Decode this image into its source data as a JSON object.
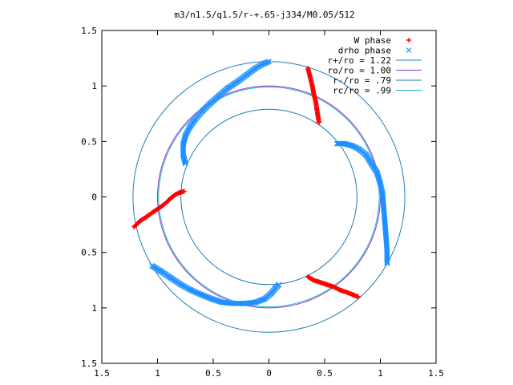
{
  "chart_data": {
    "type": "scatter",
    "title": "m3/n1.5/q1.5/r-+.65-j334/M0.05/512",
    "xlim": [
      -1.5,
      1.5
    ],
    "ylim": [
      -1.5,
      1.5
    ],
    "xticks": [
      -1.5,
      -1,
      -0.5,
      0,
      0.5,
      1,
      1.5
    ],
    "yticks": [
      -1.5,
      -1,
      -0.5,
      0,
      0.5,
      1,
      1.5
    ],
    "xtick_labels": [
      "1.5",
      "1",
      "0.5",
      "0",
      "0.5",
      "1",
      "1.5"
    ],
    "ytick_labels": [
      "1.5",
      "1",
      "0.5",
      "0",
      "0.5",
      "1",
      "1.5"
    ],
    "grid": false,
    "legend_position": "top-right",
    "series": [
      {
        "name": "W phase",
        "kind": "points",
        "marker": "plus",
        "color": "#ff0000",
        "segments": [
          [
            [
              -1.21,
              -0.27
            ],
            [
              -1.16,
              -0.22
            ],
            [
              -1.1,
              -0.18
            ],
            [
              -1.03,
              -0.13
            ],
            [
              -0.97,
              -0.09
            ],
            [
              -0.92,
              -0.05
            ],
            [
              -0.88,
              -0.01
            ],
            [
              -0.84,
              0.02
            ],
            [
              -0.8,
              0.04
            ],
            [
              -0.76,
              0.05
            ]
          ],
          [
            [
              0.35,
              1.16
            ],
            [
              0.37,
              1.08
            ],
            [
              0.39,
              1.0
            ],
            [
              0.4,
              0.94
            ],
            [
              0.42,
              0.86
            ],
            [
              0.43,
              0.79
            ],
            [
              0.44,
              0.73
            ],
            [
              0.45,
              0.67
            ]
          ],
          [
            [
              0.35,
              -0.72
            ],
            [
              0.4,
              -0.75
            ],
            [
              0.46,
              -0.77
            ],
            [
              0.52,
              -0.79
            ],
            [
              0.58,
              -0.81
            ],
            [
              0.64,
              -0.84
            ],
            [
              0.7,
              -0.86
            ],
            [
              0.75,
              -0.88
            ],
            [
              0.8,
              -0.9
            ]
          ]
        ]
      },
      {
        "name": "drho phase",
        "kind": "points",
        "marker": "cross",
        "color": "#1e90ff",
        "segments": [
          [
            [
              -0.75,
              0.3
            ],
            [
              -0.77,
              0.38
            ],
            [
              -0.77,
              0.47
            ],
            [
              -0.75,
              0.55
            ],
            [
              -0.71,
              0.63
            ],
            [
              -0.66,
              0.7
            ],
            [
              -0.6,
              0.77
            ],
            [
              -0.53,
              0.84
            ],
            [
              -0.45,
              0.91
            ],
            [
              -0.37,
              0.98
            ],
            [
              -0.28,
              1.04
            ],
            [
              -0.2,
              1.1
            ],
            [
              -0.12,
              1.16
            ],
            [
              -0.05,
              1.2
            ],
            [
              0.0,
              1.22
            ]
          ],
          [
            [
              0.61,
              0.48
            ],
            [
              0.68,
              0.48
            ],
            [
              0.75,
              0.46
            ],
            [
              0.81,
              0.43
            ],
            [
              0.87,
              0.38
            ],
            [
              0.92,
              0.3
            ],
            [
              0.97,
              0.22
            ],
            [
              1.0,
              0.12
            ],
            [
              1.02,
              0.03
            ],
            [
              1.03,
              -0.1
            ],
            [
              1.04,
              -0.22
            ],
            [
              1.05,
              -0.35
            ],
            [
              1.06,
              -0.48
            ],
            [
              1.06,
              -0.6
            ]
          ],
          [
            [
              -1.05,
              -0.62
            ],
            [
              -0.97,
              -0.67
            ],
            [
              -0.88,
              -0.73
            ],
            [
              -0.79,
              -0.79
            ],
            [
              -0.7,
              -0.84
            ],
            [
              -0.61,
              -0.88
            ],
            [
              -0.51,
              -0.92
            ],
            [
              -0.42,
              -0.95
            ],
            [
              -0.32,
              -0.96
            ],
            [
              -0.22,
              -0.96
            ],
            [
              -0.12,
              -0.95
            ],
            [
              -0.04,
              -0.92
            ],
            [
              0.02,
              -0.87
            ],
            [
              0.06,
              -0.82
            ],
            [
              0.09,
              -0.79
            ]
          ]
        ]
      },
      {
        "name": "r+/ro = 1.22",
        "kind": "circle",
        "radius": 1.22,
        "color": "#1e7fb8"
      },
      {
        "name": "ro/ro = 1.00",
        "kind": "circle",
        "radius": 1.0,
        "color": "#9b30c8"
      },
      {
        "name": "r-/ro = .79",
        "kind": "circle",
        "radius": 0.79,
        "color": "#1e7fb8"
      },
      {
        "name": "rc/ro = .99",
        "kind": "circle",
        "radius": 0.99,
        "color": "#19b8c8"
      }
    ]
  }
}
